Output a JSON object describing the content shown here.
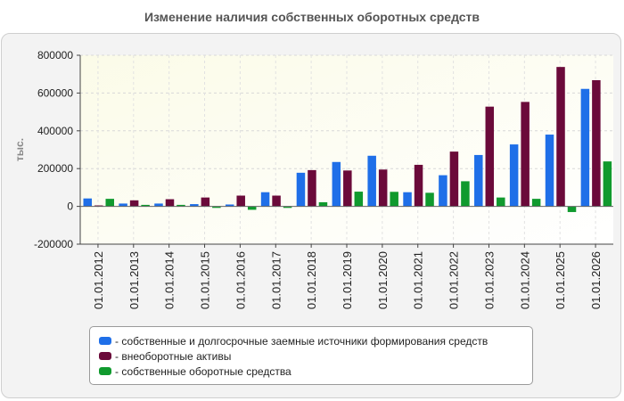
{
  "chart_data": {
    "type": "bar",
    "title": "Изменение наличия собственных оборотных средств",
    "ylabel": "тыс.",
    "xlabel": "",
    "ylim": [
      -200000,
      800000
    ],
    "yticks": [
      "-200000",
      "0",
      "200000",
      "400000",
      "600000",
      "800000"
    ],
    "grid": true,
    "legend_position": "bottom",
    "categories": [
      "01.01.2012",
      "01.01.2013",
      "01.01.2014",
      "01.01.2015",
      "01.01.2016",
      "01.01.2017",
      "01.01.2018",
      "01.01.2019",
      "01.01.2020",
      "01.01.2021",
      "01.01.2022",
      "01.01.2023",
      "01.01.2024",
      "01.01.2025",
      "01.01.2026"
    ],
    "series": [
      {
        "name": "- собственные и долгосрочные заемные источники формирования средств",
        "color": "#1f6fe8",
        "values": [
          42000,
          15000,
          15000,
          12000,
          10000,
          75000,
          178000,
          235000,
          268000,
          75000,
          165000,
          272000,
          328000,
          380000,
          622000
        ]
      },
      {
        "name": "- внеоборотные активы",
        "color": "#6b0a3a",
        "values": [
          5000,
          32000,
          38000,
          47000,
          57000,
          57000,
          192000,
          190000,
          195000,
          220000,
          290000,
          528000,
          553000,
          738000,
          668000
        ]
      },
      {
        "name": "- собственные оборотные средства",
        "color": "#109a2e",
        "values": [
          40000,
          8000,
          8000,
          -8000,
          -18000,
          -8000,
          22000,
          78000,
          77000,
          72000,
          133000,
          47000,
          40000,
          -30000,
          238000
        ]
      }
    ]
  }
}
